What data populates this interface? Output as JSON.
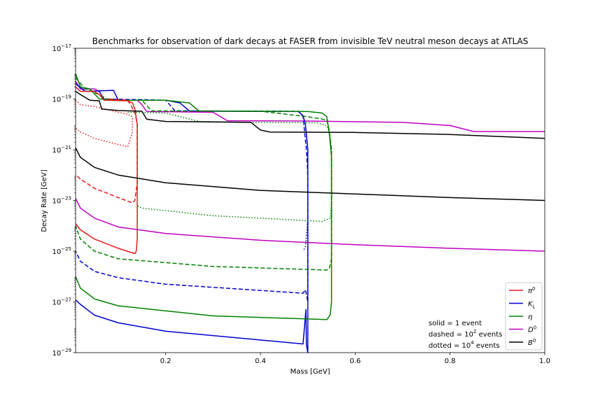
{
  "chart_data": {
    "type": "line",
    "title": "Benchmarks for observation of dark decays at FASER from invisible TeV neutral meson decays at ATLAS",
    "xlabel": "Mass  [GeV]",
    "ylabel": "Decay Rate [GeV]",
    "xlim": [
      0.01,
      1.0
    ],
    "yscale": "log",
    "ylim": [
      1e-29,
      1e-17
    ],
    "xticks": [
      0.2,
      0.4,
      0.6,
      0.8,
      1.0
    ],
    "xtick_labels": [
      "0.2",
      "0.4",
      "0.6",
      "0.8",
      "1.0"
    ],
    "yticks": [
      {
        "base": "10",
        "exp": "−17",
        "value": 1e-17
      },
      {
        "base": "10",
        "exp": "−19",
        "value": 1e-19
      },
      {
        "base": "10",
        "exp": "−21",
        "value": 1e-21
      },
      {
        "base": "10",
        "exp": "−23",
        "value": 1e-23
      },
      {
        "base": "10",
        "exp": "−25",
        "value": 1e-25
      },
      {
        "base": "10",
        "exp": "−27",
        "value": 1e-27
      },
      {
        "base": "10",
        "exp": "−29",
        "value": 1e-29
      }
    ],
    "grid": false,
    "legend_position": "lower-right",
    "legend": [
      {
        "label": "π",
        "sup": "0",
        "color": "#e41a1c"
      },
      {
        "label": "K",
        "sub": "L",
        "color": "#0000cc"
      },
      {
        "label": "η",
        "color": "#008000"
      },
      {
        "label": "D",
        "sup": "0",
        "color": "#bf00bf"
      },
      {
        "label": "B",
        "sup": "0",
        "color": "#000000"
      }
    ],
    "annotation": {
      "solid": "solid = 1 event",
      "dashed_pre": "dashed = 10",
      "dashed_exp": "2",
      "dashed_post": " events",
      "dotted_pre": "dotted = 10",
      "dotted_exp": "4",
      "dotted_post": " events"
    },
    "series": [
      {
        "meson": "D0",
        "style": "solid",
        "color": "#bf00bf",
        "points": [
          [
            0.01,
            5e-19
          ],
          [
            0.02,
            2.5e-19
          ],
          [
            0.05,
            2.5e-19
          ],
          [
            0.06,
            2e-19
          ],
          [
            0.07,
            1e-19
          ],
          [
            0.1,
            9e-20
          ],
          [
            0.14,
            9e-20
          ],
          [
            0.15,
            6e-20
          ],
          [
            0.16,
            3.2e-20
          ],
          [
            0.3,
            3e-20
          ],
          [
            0.32,
            1.8e-20
          ],
          [
            0.33,
            1.4e-20
          ],
          [
            0.5,
            1.35e-20
          ],
          [
            0.7,
            1.2e-20
          ],
          [
            0.8,
            9e-21
          ],
          [
            0.85,
            5.2e-21
          ],
          [
            1.0,
            5.2e-21
          ]
        ]
      },
      {
        "meson": "K_L",
        "style": "solid",
        "color": "#0000cc",
        "points": [
          [
            0.01,
            4e-19
          ],
          [
            0.03,
            2e-19
          ],
          [
            0.09,
            2.2e-19
          ],
          [
            0.1,
            9e-20
          ],
          [
            0.2,
            9e-20
          ],
          [
            0.23,
            7e-20
          ],
          [
            0.25,
            3.4e-20
          ],
          [
            0.3,
            3.3e-20
          ],
          [
            0.48,
            3.2e-20
          ],
          [
            0.49,
            2.2e-20
          ],
          [
            0.495,
            1e-20
          ],
          [
            0.5,
            1e-21
          ],
          [
            0.5,
            1e-29
          ],
          [
            0.497,
            2e-29
          ],
          [
            0.496,
            5e-28
          ],
          [
            0.49,
            2.2e-29
          ],
          [
            0.2,
            7e-29
          ],
          [
            0.1,
            1.5e-28
          ],
          [
            0.05,
            3e-28
          ],
          [
            0.02,
            8e-28
          ],
          [
            0.01,
            1.2e-27
          ]
        ]
      },
      {
        "meson": "K_L",
        "style": "dashed",
        "color": "#0000cc",
        "points": [
          [
            0.01,
            4e-19
          ],
          [
            0.03,
            2e-19
          ],
          [
            0.06,
            2e-19
          ],
          [
            0.07,
            1e-19
          ],
          [
            0.2,
            9e-20
          ],
          [
            0.22,
            3.4e-20
          ],
          [
            0.48,
            3.3e-20
          ],
          [
            0.49,
            2e-20
          ],
          [
            0.497,
            1e-21
          ],
          [
            0.5,
            1e-22
          ],
          [
            0.5,
            1e-27
          ],
          [
            0.495,
            3e-27
          ],
          [
            0.49,
            2.2e-27
          ],
          [
            0.2,
            5e-27
          ],
          [
            0.1,
            9e-27
          ],
          [
            0.05,
            1.6e-26
          ],
          [
            0.02,
            4e-26
          ],
          [
            0.01,
            1e-25
          ]
        ]
      },
      {
        "meson": "K_L",
        "style": "dotted",
        "color": "#0000cc",
        "points": [
          [
            0.5,
            2e-24
          ],
          [
            0.495,
            1.5e-25
          ],
          [
            0.49,
            1e-25
          ]
        ]
      },
      {
        "meson": "eta",
        "style": "solid",
        "color": "#008000",
        "points": [
          [
            0.01,
            1e-18
          ],
          [
            0.02,
            3e-19
          ],
          [
            0.04,
            2.5e-19
          ],
          [
            0.06,
            1e-19
          ],
          [
            0.1,
            9e-20
          ],
          [
            0.2,
            9e-20
          ],
          [
            0.25,
            7e-20
          ],
          [
            0.27,
            3.4e-20
          ],
          [
            0.5,
            3.2e-20
          ],
          [
            0.53,
            2.8e-20
          ],
          [
            0.54,
            2e-20
          ],
          [
            0.545,
            5e-21
          ],
          [
            0.55,
            5e-22
          ],
          [
            0.55,
            1e-27
          ],
          [
            0.547,
            3e-28
          ],
          [
            0.54,
            2e-28
          ],
          [
            0.3,
            2.8e-28
          ],
          [
            0.1,
            7e-28
          ],
          [
            0.05,
            1.3e-27
          ],
          [
            0.02,
            3.5e-27
          ],
          [
            0.01,
            1e-26
          ]
        ]
      },
      {
        "meson": "eta",
        "style": "dashed",
        "color": "#008000",
        "points": [
          [
            0.01,
            7e-19
          ],
          [
            0.03,
            2.5e-19
          ],
          [
            0.06,
            1.5e-19
          ],
          [
            0.08,
            9e-20
          ],
          [
            0.15,
            9e-20
          ],
          [
            0.17,
            3.4e-20
          ],
          [
            0.4,
            3.3e-20
          ],
          [
            0.5,
            2e-20
          ],
          [
            0.54,
            1.5e-20
          ],
          [
            0.545,
            6e-21
          ],
          [
            0.55,
            1e-21
          ],
          [
            0.55,
            5e-26
          ],
          [
            0.545,
            2e-26
          ],
          [
            0.54,
            1.8e-26
          ],
          [
            0.3,
            2.5e-26
          ],
          [
            0.1,
            5e-26
          ],
          [
            0.05,
            1e-25
          ],
          [
            0.02,
            3e-25
          ],
          [
            0.01,
            1e-24
          ]
        ]
      },
      {
        "meson": "eta",
        "style": "dotted",
        "color": "#008000",
        "points": [
          [
            0.12,
            3e-20
          ],
          [
            0.2,
            2.8e-20
          ],
          [
            0.27,
            1.3e-20
          ],
          [
            0.4,
            1.2e-20
          ],
          [
            0.52,
            1.15e-20
          ],
          [
            0.54,
            9e-21
          ],
          [
            0.545,
            5e-21
          ],
          [
            0.55,
            1e-21
          ],
          [
            0.55,
            1e-23
          ],
          [
            0.548,
            2e-24
          ],
          [
            0.53,
            1.5e-24
          ],
          [
            0.3,
            2.5e-24
          ],
          [
            0.15,
            5e-24
          ],
          [
            0.14,
            6e-24
          ]
        ]
      },
      {
        "meson": "pi0",
        "style": "solid",
        "color": "#e41a1c",
        "points": [
          [
            0.01,
            3e-19
          ],
          [
            0.02,
            2e-19
          ],
          [
            0.05,
            2e-19
          ],
          [
            0.06,
            1.5e-19
          ],
          [
            0.07,
            9e-20
          ],
          [
            0.12,
            8.5e-20
          ],
          [
            0.13,
            7e-20
          ],
          [
            0.135,
            4e-20
          ],
          [
            0.14,
            1e-20
          ],
          [
            0.14,
            3e-25
          ],
          [
            0.138,
            1e-25
          ],
          [
            0.135,
            8e-26
          ],
          [
            0.1,
            1.3e-25
          ],
          [
            0.05,
            3e-25
          ],
          [
            0.02,
            7e-25
          ],
          [
            0.01,
            1.2e-24
          ]
        ]
      },
      {
        "meson": "pi0",
        "style": "dashed",
        "color": "#e41a1c",
        "points": [
          [
            0.08,
            1e-19
          ],
          [
            0.12,
            9e-20
          ],
          [
            0.135,
            3e-20
          ],
          [
            0.14,
            1e-20
          ],
          [
            0.14,
            5e-23
          ],
          [
            0.135,
            1e-23
          ],
          [
            0.13,
            8e-24
          ],
          [
            0.1,
            1.3e-23
          ],
          [
            0.05,
            3e-23
          ],
          [
            0.02,
            7e-23
          ],
          [
            0.01,
            1e-22
          ]
        ]
      },
      {
        "meson": "pi0",
        "style": "dotted",
        "color": "#e41a1c",
        "points": [
          [
            0.01,
            9e-20
          ],
          [
            0.02,
            6e-20
          ],
          [
            0.05,
            5e-20
          ],
          [
            0.1,
            3e-20
          ],
          [
            0.12,
            2.5e-20
          ],
          [
            0.13,
            2e-20
          ],
          [
            0.13,
            5e-21
          ],
          [
            0.12,
            1.3e-21
          ],
          [
            0.1,
            1.6e-21
          ],
          [
            0.05,
            2.8e-21
          ],
          [
            0.02,
            5e-21
          ],
          [
            0.01,
            7e-21
          ]
        ]
      },
      {
        "meson": "B0",
        "style": "solid",
        "color": "#000000",
        "points": [
          [
            0.01,
            2e-19
          ],
          [
            0.02,
            1.5e-19
          ],
          [
            0.04,
            9e-20
          ],
          [
            0.06,
            8.5e-20
          ],
          [
            0.065,
            4e-20
          ],
          [
            0.1,
            3.5e-20
          ],
          [
            0.15,
            3.3e-20
          ],
          [
            0.16,
            1.6e-20
          ],
          [
            0.2,
            1.3e-20
          ],
          [
            0.38,
            1.2e-20
          ],
          [
            0.4,
            6e-21
          ],
          [
            0.42,
            5e-21
          ],
          [
            0.6,
            4.8e-21
          ],
          [
            0.8,
            4e-21
          ],
          [
            1.0,
            2.8e-21
          ]
        ]
      },
      {
        "meson": "B0",
        "style": "solid",
        "color": "#000000",
        "points": [
          [
            0.01,
            1.2e-21
          ],
          [
            0.02,
            5e-22
          ],
          [
            0.05,
            2e-22
          ],
          [
            0.1,
            1e-22
          ],
          [
            0.2,
            5e-23
          ],
          [
            0.4,
            2.5e-23
          ],
          [
            0.6,
            1.8e-23
          ],
          [
            0.8,
            1.3e-23
          ],
          [
            1.0,
            1e-23
          ]
        ]
      },
      {
        "meson": "D0",
        "style": "solid",
        "color": "#bf00bf",
        "points": [
          [
            0.01,
            1.2e-23
          ],
          [
            0.02,
            5e-24
          ],
          [
            0.05,
            2e-24
          ],
          [
            0.1,
            9e-25
          ],
          [
            0.2,
            5e-25
          ],
          [
            0.4,
            2.7e-25
          ],
          [
            0.6,
            1.8e-25
          ],
          [
            0.8,
            1.3e-25
          ],
          [
            1.0,
            1e-25
          ]
        ]
      }
    ]
  }
}
